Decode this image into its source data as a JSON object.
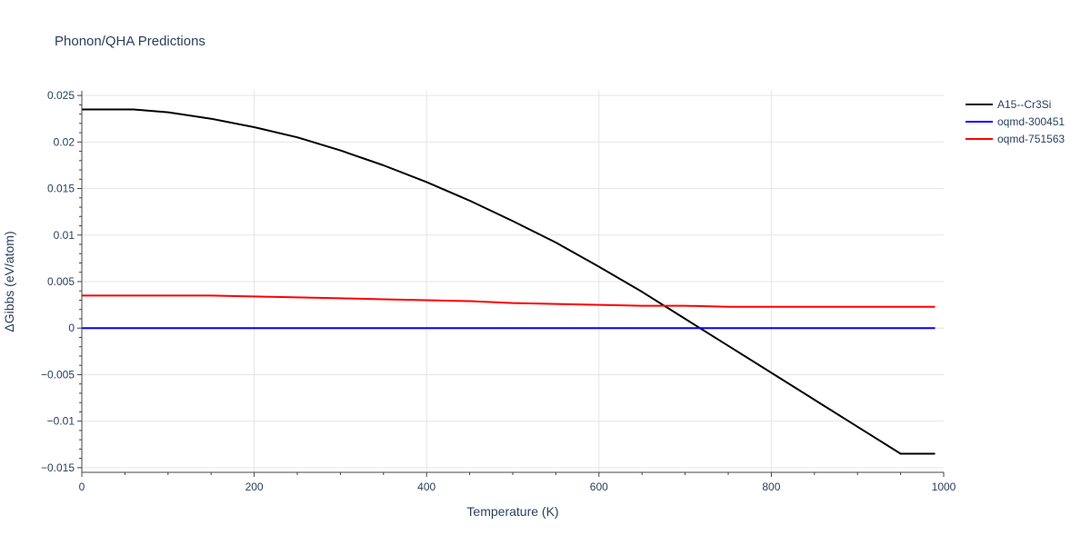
{
  "chart_data": {
    "type": "line",
    "title": "Phonon/QHA Predictions",
    "xlabel": "Temperature (K)",
    "ylabel": "ΔGibbs (eV/atom)",
    "xlim": [
      0,
      1000
    ],
    "ylim": [
      -0.0155,
      0.0255
    ],
    "xticks": [
      0,
      200,
      400,
      600,
      800,
      1000
    ],
    "xtick_labels": [
      "0",
      "200",
      "400",
      "600",
      "800",
      "1000"
    ],
    "yticks": [
      0.025,
      0.02,
      0.015,
      0.01,
      0.005,
      0,
      -0.005,
      -0.01,
      -0.015
    ],
    "ytick_labels": [
      "0.025",
      "0.02",
      "0.015",
      "0.01",
      "0.005",
      "0",
      "−0.005",
      "−0.01",
      "−0.015"
    ],
    "grid": true,
    "legend_position": "right",
    "series": [
      {
        "name": "A15--Cr3Si",
        "color": "#000000",
        "x": [
          0,
          60,
          100,
          150,
          200,
          250,
          300,
          350,
          400,
          450,
          500,
          550,
          600,
          650,
          700,
          750,
          800,
          850,
          900,
          950,
          990
        ],
        "y": [
          0.0235,
          0.0235,
          0.0232,
          0.0225,
          0.0216,
          0.0205,
          0.0191,
          0.0175,
          0.0157,
          0.0137,
          0.0115,
          0.0092,
          0.0066,
          0.0039,
          0.001,
          -0.0019,
          -0.0048,
          -0.0077,
          -0.0106,
          -0.0135,
          -0.0135
        ]
      },
      {
        "name": "oqmd-300451",
        "color": "#0000ff",
        "x": [
          0,
          990
        ],
        "y": [
          0,
          0
        ]
      },
      {
        "name": "oqmd-751563",
        "color": "#ff0000",
        "x": [
          0,
          50,
          100,
          150,
          200,
          250,
          300,
          350,
          400,
          450,
          500,
          550,
          600,
          650,
          700,
          750,
          800,
          850,
          900,
          950,
          990
        ],
        "y": [
          0.0035,
          0.0035,
          0.0035,
          0.0035,
          0.0034,
          0.0033,
          0.0032,
          0.0031,
          0.003,
          0.0029,
          0.0027,
          0.0026,
          0.0025,
          0.0024,
          0.0024,
          0.0023,
          0.0023,
          0.0023,
          0.0023,
          0.0023,
          0.0023
        ]
      }
    ]
  }
}
